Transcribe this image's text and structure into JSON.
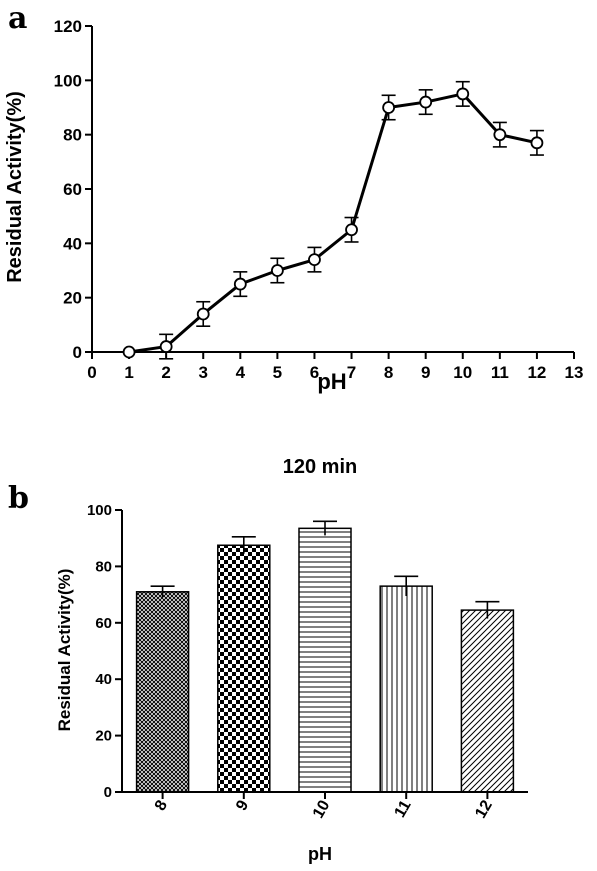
{
  "chart_data": [
    {
      "panel_label": "a",
      "type": "line",
      "title": "",
      "xlabel": "pH",
      "ylabel": "Residual Activity(%)",
      "xlim": [
        0,
        13
      ],
      "ylim": [
        0,
        120
      ],
      "xticks": [
        0,
        1,
        2,
        3,
        4,
        5,
        6,
        7,
        8,
        9,
        10,
        11,
        12,
        13
      ],
      "yticks": [
        0,
        20,
        40,
        60,
        80,
        100,
        120
      ],
      "grid": false,
      "marker": "open-circle",
      "x": [
        1,
        2,
        3,
        4,
        5,
        6,
        7,
        8,
        9,
        10,
        11,
        12
      ],
      "y": [
        0,
        2,
        14,
        25,
        30,
        34,
        45,
        90,
        92,
        95,
        80,
        77
      ],
      "error": [
        0,
        4.5,
        4.5,
        4.5,
        4.5,
        4.5,
        4.5,
        4.5,
        4.5,
        4.5,
        4.5,
        4.5
      ]
    },
    {
      "panel_label": "b",
      "type": "bar",
      "title": "120 min",
      "xlabel": "pH",
      "ylabel": "Residual Activity(%)",
      "ylim": [
        0,
        100
      ],
      "yticks": [
        0,
        20,
        40,
        60,
        80,
        100
      ],
      "grid": false,
      "categories": [
        "8",
        "9",
        "10",
        "11",
        "12"
      ],
      "values": [
        71,
        87.5,
        93.5,
        73,
        64.5
      ],
      "error": [
        2,
        3,
        2.5,
        3.5,
        3
      ],
      "patterns": [
        "fine-crosshatch",
        "checkerboard",
        "horizontal-lines",
        "vertical-lines",
        "diagonal-lines"
      ]
    }
  ]
}
